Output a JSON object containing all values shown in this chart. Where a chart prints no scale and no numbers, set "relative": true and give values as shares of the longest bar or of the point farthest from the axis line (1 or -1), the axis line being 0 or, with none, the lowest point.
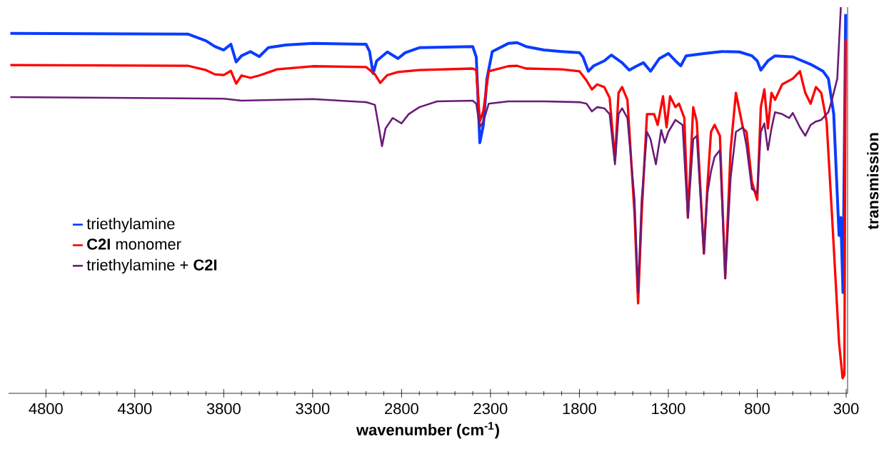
{
  "chart_data": {
    "type": "line",
    "relative": true,
    "xlabel": "wavenumber (cm$^{-1}$)",
    "ylabel": "transmission",
    "xlim": [
      5010,
      292
    ],
    "xticks": [
      4800,
      4300,
      3800,
      3300,
      2800,
      2300,
      1800,
      1300,
      800,
      300
    ],
    "legend": "left",
    "line_style": "solid",
    "marker": "none",
    "grid": false,
    "series": [
      {
        "name": "triethylamine",
        "color": "#0a3cff",
        "x": [
          5000,
          4000,
          3900,
          3850,
          3800,
          3760,
          3730,
          3700,
          3650,
          3600,
          3550,
          3450,
          3300,
          3000,
          2980,
          2960,
          2940,
          2880,
          2820,
          2780,
          2700,
          2400,
          2380,
          2360,
          2340,
          2320,
          2290,
          2200,
          2150,
          2100,
          2000,
          1900,
          1800,
          1780,
          1750,
          1720,
          1660,
          1620,
          1560,
          1520,
          1480,
          1440,
          1400,
          1350,
          1300,
          1260,
          1230,
          1200,
          1100,
          1000,
          900,
          830,
          800,
          780,
          740,
          700,
          600,
          500,
          430,
          400,
          370,
          340,
          330,
          318,
          303
        ],
        "values": [
          0.932,
          0.93,
          0.913,
          0.898,
          0.889,
          0.904,
          0.858,
          0.874,
          0.885,
          0.872,
          0.895,
          0.902,
          0.906,
          0.904,
          0.885,
          0.828,
          0.861,
          0.884,
          0.867,
          0.882,
          0.895,
          0.898,
          0.871,
          0.649,
          0.695,
          0.815,
          0.885,
          0.906,
          0.908,
          0.898,
          0.889,
          0.885,
          0.882,
          0.871,
          0.834,
          0.848,
          0.861,
          0.876,
          0.856,
          0.837,
          0.847,
          0.856,
          0.834,
          0.867,
          0.88,
          0.861,
          0.848,
          0.874,
          0.88,
          0.885,
          0.884,
          0.874,
          0.861,
          0.837,
          0.861,
          0.874,
          0.871,
          0.852,
          0.834,
          0.815,
          0.723,
          0.409,
          0.455,
          0.261,
          0.982
        ]
      },
      {
        "name": "**C2I** monomer",
        "color": "#ff0000",
        "x": [
          5000,
          4000,
          3900,
          3850,
          3800,
          3760,
          3730,
          3700,
          3650,
          3600,
          3500,
          3300,
          3000,
          2950,
          2920,
          2880,
          2820,
          2700,
          2400,
          2380,
          2360,
          2340,
          2310,
          2200,
          2150,
          2100,
          1900,
          1800,
          1760,
          1730,
          1700,
          1660,
          1630,
          1600,
          1580,
          1560,
          1530,
          1490,
          1470,
          1450,
          1420,
          1400,
          1380,
          1360,
          1330,
          1310,
          1290,
          1260,
          1240,
          1210,
          1190,
          1160,
          1140,
          1100,
          1080,
          1060,
          1040,
          1010,
          980,
          950,
          920,
          880,
          860,
          830,
          800,
          780,
          760,
          740,
          720,
          700,
          660,
          600,
          560,
          530,
          500,
          470,
          440,
          410,
          380,
          340,
          320,
          310,
          303
        ],
        "values": [
          0.85,
          0.848,
          0.837,
          0.826,
          0.824,
          0.835,
          0.802,
          0.823,
          0.817,
          0.823,
          0.839,
          0.847,
          0.845,
          0.826,
          0.804,
          0.824,
          0.832,
          0.837,
          0.841,
          0.837,
          0.704,
          0.732,
          0.834,
          0.847,
          0.848,
          0.841,
          0.839,
          0.834,
          0.81,
          0.787,
          0.8,
          0.793,
          0.765,
          0.603,
          0.778,
          0.793,
          0.76,
          0.464,
          0.233,
          0.464,
          0.723,
          0.723,
          0.723,
          0.695,
          0.769,
          0.689,
          0.769,
          0.741,
          0.75,
          0.713,
          0.455,
          0.741,
          0.704,
          0.362,
          0.538,
          0.677,
          0.695,
          0.667,
          0.298,
          0.63,
          0.778,
          0.686,
          0.677,
          0.547,
          0.501,
          0.741,
          0.787,
          0.686,
          0.778,
          0.76,
          0.8,
          0.815,
          0.834,
          0.778,
          0.75,
          0.793,
          0.778,
          0.704,
          0.464,
          0.131,
          0.039,
          0.048,
          0.917
        ]
      },
      {
        "name": "triethylamine + **C2I**",
        "color": "#6a1b78",
        "x": [
          5000,
          3800,
          3700,
          3300,
          3000,
          2950,
          2930,
          2910,
          2890,
          2850,
          2800,
          2760,
          2700,
          2600,
          2400,
          2380,
          2360,
          2340,
          2310,
          2200,
          2000,
          1800,
          1760,
          1730,
          1700,
          1660,
          1630,
          1600,
          1580,
          1560,
          1530,
          1490,
          1470,
          1450,
          1420,
          1400,
          1370,
          1340,
          1320,
          1300,
          1260,
          1220,
          1190,
          1160,
          1140,
          1100,
          1080,
          1060,
          1040,
          1010,
          980,
          950,
          920,
          880,
          860,
          830,
          800,
          780,
          760,
          740,
          720,
          700,
          660,
          620,
          600,
          560,
          530,
          500,
          470,
          440,
          400,
          380,
          350,
          340,
          330
        ],
        "values": [
          0.767,
          0.763,
          0.758,
          0.762,
          0.754,
          0.747,
          0.695,
          0.64,
          0.686,
          0.713,
          0.699,
          0.723,
          0.741,
          0.756,
          0.758,
          0.75,
          0.689,
          0.704,
          0.75,
          0.756,
          0.756,
          0.754,
          0.75,
          0.73,
          0.741,
          0.738,
          0.723,
          0.593,
          0.723,
          0.738,
          0.713,
          0.501,
          0.261,
          0.501,
          0.677,
          0.658,
          0.593,
          0.682,
          0.649,
          0.677,
          0.708,
          0.695,
          0.455,
          0.658,
          0.667,
          0.362,
          0.519,
          0.575,
          0.612,
          0.63,
          0.298,
          0.556,
          0.677,
          0.689,
          0.64,
          0.529,
          0.519,
          0.677,
          0.699,
          0.63,
          0.686,
          0.728,
          0.723,
          0.713,
          0.726,
          0.689,
          0.667,
          0.695,
          0.704,
          0.708,
          0.728,
          0.76,
          0.815,
          0.908,
          1.0
        ]
      }
    ]
  }
}
